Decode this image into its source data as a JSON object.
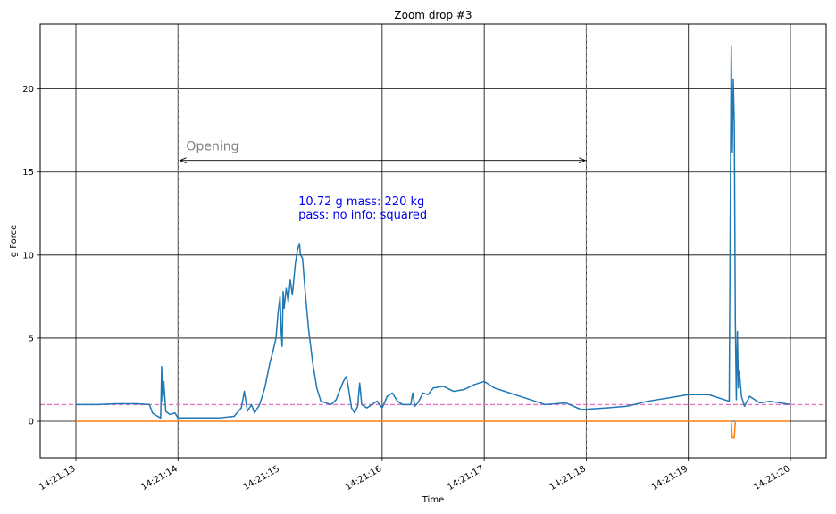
{
  "chart_data": {
    "type": "line",
    "title": "Zoom drop #3",
    "xlabel": "Time",
    "ylabel": "g Force",
    "xlim": [
      "14:21:12.65",
      "14:21:20.35"
    ],
    "ylim": [
      -2.2,
      23.9
    ],
    "x_ticks": [
      "14:21:13",
      "14:21:14",
      "14:21:15",
      "14:21:16",
      "14:21:17",
      "14:21:18",
      "14:21:19",
      "14:21:20"
    ],
    "y_ticks": [
      0,
      5,
      10,
      15,
      20
    ],
    "grid": true,
    "series": [
      {
        "color": "#1f77b4",
        "points": [
          [
            "14:21:13.00",
            1.0
          ],
          [
            "14:21:13.20",
            1.0
          ],
          [
            "14:21:13.40",
            1.05
          ],
          [
            "14:21:13.60",
            1.05
          ],
          [
            "14:21:13.72",
            1.0
          ],
          [
            "14:21:13.75",
            0.5
          ],
          [
            "14:21:13.80",
            0.3
          ],
          [
            "14:21:13.83",
            0.2
          ],
          [
            "14:21:13.84",
            3.3
          ],
          [
            "14:21:13.85",
            1.2
          ],
          [
            "14:21:13.86",
            2.4
          ],
          [
            "14:21:13.88",
            0.6
          ],
          [
            "14:21:13.92",
            0.4
          ],
          [
            "14:21:13.97",
            0.5
          ],
          [
            "14:21:14.00",
            0.2
          ],
          [
            "14:21:14.20",
            0.2
          ],
          [
            "14:21:14.40",
            0.2
          ],
          [
            "14:21:14.55",
            0.3
          ],
          [
            "14:21:14.62",
            0.8
          ],
          [
            "14:21:14.65",
            1.8
          ],
          [
            "14:21:14.68",
            0.6
          ],
          [
            "14:21:14.72",
            1.0
          ],
          [
            "14:21:14.75",
            0.5
          ],
          [
            "14:21:14.80",
            1.0
          ],
          [
            "14:21:14.85",
            2.0
          ],
          [
            "14:21:14.90",
            3.5
          ],
          [
            "14:21:14.93",
            4.2
          ],
          [
            "14:21:14.96",
            5.0
          ],
          [
            "14:21:14.98",
            6.5
          ],
          [
            "14:21:15.00",
            7.5
          ],
          [
            "14:21:15.01",
            5.5
          ],
          [
            "14:21:15.02",
            4.5
          ],
          [
            "14:21:15.03",
            7.8
          ],
          [
            "14:21:15.04",
            6.8
          ],
          [
            "14:21:15.06",
            8.0
          ],
          [
            "14:21:15.08",
            7.2
          ],
          [
            "14:21:15.10",
            8.5
          ],
          [
            "14:21:15.12",
            7.6
          ],
          [
            "14:21:15.15",
            9.5
          ],
          [
            "14:21:15.17",
            10.3
          ],
          [
            "14:21:15.19",
            10.7
          ],
          [
            "14:21:15.20",
            10.0
          ],
          [
            "14:21:15.22",
            9.8
          ],
          [
            "14:21:15.25",
            7.5
          ],
          [
            "14:21:15.28",
            5.5
          ],
          [
            "14:21:15.32",
            3.5
          ],
          [
            "14:21:15.36",
            2.0
          ],
          [
            "14:21:15.40",
            1.2
          ],
          [
            "14:21:15.45",
            1.1
          ],
          [
            "14:21:15.50",
            1.0
          ],
          [
            "14:21:15.55",
            1.3
          ],
          [
            "14:21:15.58",
            1.8
          ],
          [
            "14:21:15.62",
            2.4
          ],
          [
            "14:21:15.65",
            2.7
          ],
          [
            "14:21:15.67",
            2.0
          ],
          [
            "14:21:15.70",
            0.8
          ],
          [
            "14:21:15.73",
            0.5
          ],
          [
            "14:21:15.76",
            0.9
          ],
          [
            "14:21:15.78",
            2.3
          ],
          [
            "14:21:15.80",
            1.0
          ],
          [
            "14:21:15.85",
            0.8
          ],
          [
            "14:21:15.90",
            1.0
          ],
          [
            "14:21:15.95",
            1.2
          ],
          [
            "14:21:16.00",
            0.8
          ],
          [
            "14:21:16.05",
            1.5
          ],
          [
            "14:21:16.10",
            1.7
          ],
          [
            "14:21:16.15",
            1.2
          ],
          [
            "14:21:16.20",
            1.0
          ],
          [
            "14:21:16.28",
            1.0
          ],
          [
            "14:21:16.30",
            1.7
          ],
          [
            "14:21:16.32",
            0.9
          ],
          [
            "14:21:16.35",
            1.1
          ],
          [
            "14:21:16.40",
            1.7
          ],
          [
            "14:21:16.45",
            1.6
          ],
          [
            "14:21:16.50",
            2.0
          ],
          [
            "14:21:16.60",
            2.1
          ],
          [
            "14:21:16.70",
            1.8
          ],
          [
            "14:21:16.80",
            1.9
          ],
          [
            "14:21:16.90",
            2.2
          ],
          [
            "14:21:17.00",
            2.4
          ],
          [
            "14:21:17.10",
            2.0
          ],
          [
            "14:21:17.20",
            1.8
          ],
          [
            "14:21:17.40",
            1.4
          ],
          [
            "14:21:17.60",
            1.0
          ],
          [
            "14:21:17.80",
            1.1
          ],
          [
            "14:21:17.95",
            0.7
          ],
          [
            "14:21:18.20",
            0.8
          ],
          [
            "14:21:18.40",
            0.9
          ],
          [
            "14:21:18.60",
            1.2
          ],
          [
            "14:21:18.80",
            1.4
          ],
          [
            "14:21:19.00",
            1.6
          ],
          [
            "14:21:19.20",
            1.6
          ],
          [
            "14:21:19.40",
            1.2
          ],
          [
            "14:21:19.42",
            22.6
          ],
          [
            "14:21:19.43",
            16.2
          ],
          [
            "14:21:19.44",
            20.6
          ],
          [
            "14:21:19.45",
            17.9
          ],
          [
            "14:21:19.46",
            6.0
          ],
          [
            "14:21:19.47",
            1.3
          ],
          [
            "14:21:19.48",
            5.4
          ],
          [
            "14:21:19.49",
            2.0
          ],
          [
            "14:21:19.50",
            3.0
          ],
          [
            "14:21:19.52",
            1.5
          ],
          [
            "14:21:19.55",
            0.9
          ],
          [
            "14:21:19.60",
            1.5
          ],
          [
            "14:21:19.70",
            1.1
          ],
          [
            "14:21:19.80",
            1.2
          ],
          [
            "14:21:19.90",
            1.1
          ],
          [
            "14:21:20.00",
            1.0
          ]
        ]
      },
      {
        "color": "#ff7f0e",
        "points": [
          [
            "14:21:13.00",
            0.0
          ],
          [
            "14:21:19.42",
            0.0
          ],
          [
            "14:21:19.43",
            -1.0
          ],
          [
            "14:21:19.45",
            -1.0
          ],
          [
            "14:21:19.46",
            0.0
          ],
          [
            "14:21:20.00",
            0.0
          ]
        ]
      }
    ],
    "reference_line": {
      "y": 1.0,
      "color": "#e377c2",
      "style": "dashed"
    },
    "vertical_markers": [
      "14:21:14.00",
      "14:21:18.00"
    ],
    "annotations": [
      {
        "text": "Opening",
        "color": "#808080",
        "arrow_from": "14:21:14.02",
        "arrow_to": "14:21:17.99",
        "y": 15.7,
        "text_x": "14:21:14.08",
        "text_y": 16.3
      },
      {
        "lines": [
          "10.72 g  mass: 220 kg",
          "pass: no  info: squared"
        ],
        "color": "#0000ee",
        "x": "14:21:15.18",
        "y": 13.0
      }
    ]
  }
}
